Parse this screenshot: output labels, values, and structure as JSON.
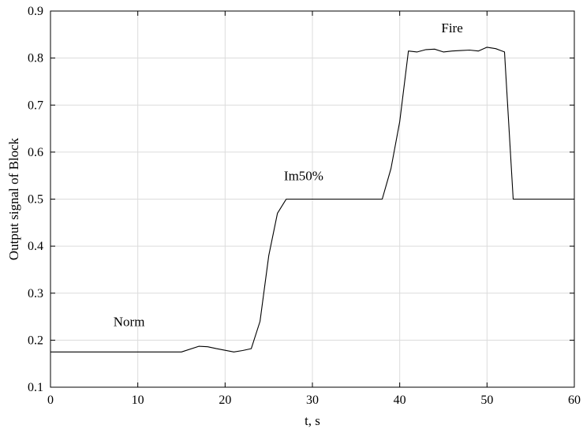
{
  "chart_data": {
    "type": "line",
    "title": "",
    "xlabel": "t, s",
    "ylabel": "Output signal of Block",
    "xlim": [
      0,
      60
    ],
    "ylim": [
      0.1,
      0.9
    ],
    "xticks": [
      0,
      10,
      20,
      30,
      40,
      50,
      60
    ],
    "yticks": [
      0.1,
      0.2,
      0.3,
      0.4,
      0.5,
      0.6,
      0.7,
      0.8,
      0.9
    ],
    "grid": true,
    "series": [
      {
        "color": "#000000",
        "x": [
          0,
          15,
          17,
          18,
          19,
          21,
          22,
          23,
          24,
          25,
          26,
          27,
          38,
          39,
          40,
          41,
          42,
          43,
          44,
          45,
          46,
          47,
          48,
          49,
          50,
          51,
          52,
          53,
          60
        ],
        "y": [
          0.175,
          0.175,
          0.187,
          0.186,
          0.182,
          0.175,
          0.178,
          0.182,
          0.24,
          0.38,
          0.47,
          0.5,
          0.5,
          0.565,
          0.665,
          0.815,
          0.813,
          0.818,
          0.819,
          0.813,
          0.815,
          0.816,
          0.817,
          0.815,
          0.823,
          0.82,
          0.813,
          0.5,
          0.5
        ]
      }
    ],
    "annotations": [
      {
        "text": "Norm",
        "x": 9,
        "y": 0.23
      },
      {
        "text": "Im50%",
        "x": 29,
        "y": 0.54
      },
      {
        "text": "Fire",
        "x": 46,
        "y": 0.855
      }
    ]
  }
}
